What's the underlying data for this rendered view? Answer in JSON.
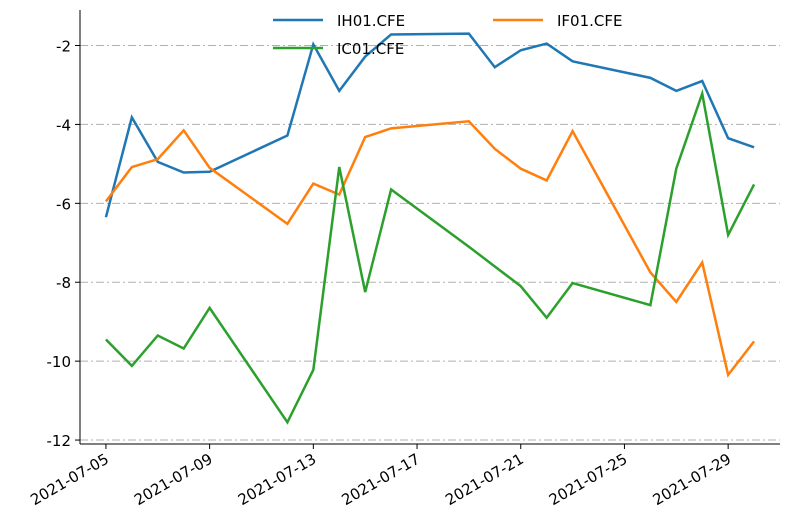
{
  "chart_data": {
    "type": "line",
    "x": [
      "2021-07-05",
      "2021-07-06",
      "2021-07-07",
      "2021-07-08",
      "2021-07-09",
      "2021-07-12",
      "2021-07-13",
      "2021-07-14",
      "2021-07-15",
      "2021-07-16",
      "2021-07-19",
      "2021-07-20",
      "2021-07-21",
      "2021-07-22",
      "2021-07-23",
      "2021-07-26",
      "2021-07-27",
      "2021-07-28",
      "2021-07-29",
      "2021-07-30"
    ],
    "series": [
      {
        "name": "IH01.CFE",
        "color": "#1f77b4",
        "values": [
          -6.35,
          -3.82,
          -4.95,
          -5.22,
          -5.2,
          -4.28,
          -1.97,
          -3.15,
          -2.28,
          -1.72,
          -1.7,
          -2.55,
          -2.12,
          -1.95,
          -2.4,
          -2.82,
          -3.15,
          -2.9,
          -4.35,
          -4.58
        ]
      },
      {
        "name": "IF01.CFE",
        "color": "#ff7f0e",
        "values": [
          -5.95,
          -5.08,
          -4.88,
          -4.15,
          -5.1,
          -6.52,
          -5.5,
          -5.78,
          -4.32,
          -4.1,
          -3.92,
          -4.62,
          -5.12,
          -5.42,
          -4.17,
          -7.75,
          -8.5,
          -7.5,
          -10.35,
          -9.5
        ]
      },
      {
        "name": "IC01.CFE",
        "color": "#2ca02c",
        "values": [
          -9.45,
          -10.12,
          -9.35,
          -9.68,
          -8.65,
          -11.55,
          -10.22,
          -5.08,
          -8.25,
          -5.65,
          -7.1,
          -7.6,
          -8.1,
          -8.9,
          -8.02,
          -8.58,
          -5.12,
          -3.22,
          -6.8,
          -5.52
        ]
      }
    ],
    "xlim": [
      "2021-07-04",
      "2021-07-31"
    ],
    "xticks": [
      "2021-07-05",
      "2021-07-09",
      "2021-07-13",
      "2021-07-17",
      "2021-07-21",
      "2021-07-25",
      "2021-07-29"
    ],
    "ylim": [
      -12.1,
      -1.1
    ],
    "yticks": [
      -12,
      -10,
      -8,
      -6,
      -4,
      -2
    ],
    "grid": true,
    "legend": "upper center"
  }
}
